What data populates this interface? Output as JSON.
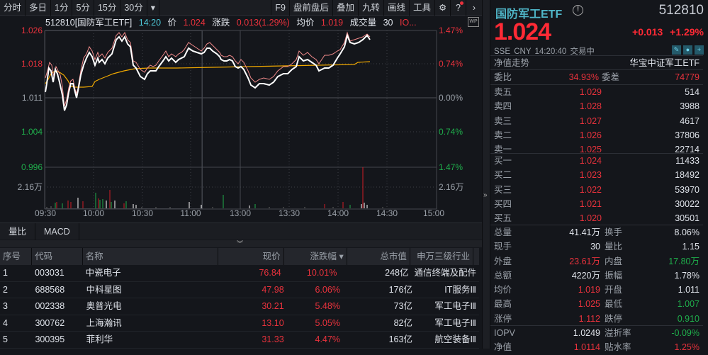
{
  "toolbar": {
    "left": [
      "分时",
      "多日",
      "1分",
      "5分",
      "15分",
      "30分"
    ],
    "more_icon": "▾",
    "right": [
      "F9",
      "盘前盘后",
      "叠加",
      "九转",
      "画线",
      "工具"
    ],
    "settings_icon": "⚙",
    "help_icon": "?",
    "next_icon": "›"
  },
  "infobar": {
    "title": "512810[国防军工ETF]",
    "time": "14:20",
    "price_label": "价",
    "price": "1.024",
    "change_label": "涨跌",
    "change": "0.013(1.29%)",
    "avg_label": "均价",
    "avg": "1.019",
    "volume_label": "成交量",
    "volume": "30",
    "iopv": "IO...",
    "wp_icon": "WP"
  },
  "chart_data": {
    "type": "line",
    "title": "512810[国防军工ETF] 分时",
    "y_left_ticks": [
      "1.026",
      "1.018",
      "1.011",
      "1.004",
      "0.996"
    ],
    "y_right_ticks": [
      "1.47%",
      "0.74%",
      "0.00%",
      "0.74%",
      "1.47%"
    ],
    "volume_tick": "2.16万",
    "x_ticks": [
      "09:30",
      "10:00",
      "10:30",
      "11:00",
      "13:00",
      "13:30",
      "14:00",
      "14:30",
      "15:00"
    ],
    "ylim": [
      0.996,
      1.026
    ],
    "prev_close": 1.011,
    "series": [
      {
        "name": "price",
        "color": "#ffffff",
        "values": [
          1.011,
          1.014,
          1.018,
          1.016,
          1.013,
          1.017,
          1.015,
          1.008,
          1.01,
          1.013,
          1.012,
          1.011,
          1.015,
          1.017,
          1.019,
          1.018,
          1.02,
          1.019,
          1.017,
          1.018,
          1.016,
          1.021,
          1.022,
          1.023,
          1.022,
          1.02,
          1.018,
          1.017,
          1.016,
          1.015,
          1.016,
          1.017,
          1.016,
          1.017,
          1.018,
          1.019,
          1.02,
          1.02,
          1.019,
          1.017,
          1.016,
          1.016,
          1.018,
          1.019,
          1.021,
          1.021,
          1.02,
          1.018,
          1.019,
          1.018,
          1.016,
          1.017,
          1.018,
          1.019,
          1.019,
          1.02,
          1.022,
          1.024,
          1.023,
          1.023,
          1.024,
          1.024
        ]
      },
      {
        "name": "avg_price",
        "color": "#f0a800",
        "values": [
          1.011,
          1.012,
          1.014,
          1.015,
          1.015,
          1.014,
          1.013,
          1.013,
          1.014,
          1.015,
          1.016,
          1.016,
          1.017,
          1.017,
          1.017,
          1.017,
          1.017,
          1.017,
          1.017,
          1.0175,
          1.0175,
          1.0175,
          1.0175,
          1.0175,
          1.0178,
          1.0178,
          1.018,
          1.018,
          1.019,
          1.019
        ]
      }
    ]
  },
  "subtabs": [
    "量比",
    "MACD"
  ],
  "table": {
    "headers": [
      "序号",
      "代码",
      "名称",
      "现价",
      "涨跌幅",
      "总市值",
      "申万三级行业"
    ],
    "sort_icon": "▾",
    "rows": [
      {
        "no": "1",
        "code": "003031",
        "name": "中瓷电子",
        "price": "76.84",
        "pct": "10.01%",
        "cap": "248亿",
        "ind": "通信终端及配件"
      },
      {
        "no": "2",
        "code": "688568",
        "name": "中科星图",
        "price": "47.98",
        "pct": "6.06%",
        "cap": "176亿",
        "ind": "IT服务Ⅲ"
      },
      {
        "no": "3",
        "code": "002338",
        "name": "奥普光电",
        "price": "30.21",
        "pct": "5.48%",
        "cap": "73亿",
        "ind": "军工电子Ⅲ"
      },
      {
        "no": "4",
        "code": "300762",
        "name": "上海瀚讯",
        "price": "13.10",
        "pct": "5.05%",
        "cap": "82亿",
        "ind": "军工电子Ⅲ"
      },
      {
        "no": "5",
        "code": "300395",
        "name": "菲利华",
        "price": "31.33",
        "pct": "4.47%",
        "cap": "163亿",
        "ind": "航空装备Ⅲ"
      }
    ]
  },
  "quote": {
    "name": "国防军工ETF",
    "info_icon": "!",
    "code": "512810",
    "price": "1.024",
    "change": "+0.013",
    "pct": "+1.29%",
    "meta": "SSE  CNY  14:20:40  交易中",
    "icons": [
      "✎",
      "🔔",
      "+"
    ],
    "nav_label": "净值走势",
    "fund_name": "华宝中证军工ETF",
    "wb_label": "委比",
    "wb": "34.93%",
    "wc_label": "委差",
    "wc": "74779",
    "asks": [
      {
        "label": "卖五",
        "price": "1.029",
        "vol": "514"
      },
      {
        "label": "卖四",
        "price": "1.028",
        "vol": "3988"
      },
      {
        "label": "卖三",
        "price": "1.027",
        "vol": "4617"
      },
      {
        "label": "卖二",
        "price": "1.026",
        "vol": "37806"
      },
      {
        "label": "卖一",
        "price": "1.025",
        "vol": "22714"
      }
    ],
    "bids": [
      {
        "label": "买一",
        "price": "1.024",
        "vol": "11433"
      },
      {
        "label": "买二",
        "price": "1.023",
        "vol": "18492"
      },
      {
        "label": "买三",
        "price": "1.022",
        "vol": "53970"
      },
      {
        "label": "买四",
        "price": "1.021",
        "vol": "30022"
      },
      {
        "label": "买五",
        "price": "1.020",
        "vol": "30501"
      }
    ],
    "stats": [
      {
        "l1": "总量",
        "v1": "41.41万",
        "c1": "white",
        "l2": "换手",
        "v2": "8.06%",
        "c2": "white"
      },
      {
        "l1": "现手",
        "v1": "30",
        "c1": "white",
        "l2": "量比",
        "v2": "1.15",
        "c2": "white"
      },
      {
        "l1": "外盘",
        "v1": "23.61万",
        "c1": "red",
        "l2": "内盘",
        "v2": "17.80万",
        "c2": "green"
      },
      {
        "l1": "总额",
        "v1": "4220万",
        "c1": "white",
        "l2": "振幅",
        "v2": "1.78%",
        "c2": "white"
      },
      {
        "l1": "均价",
        "v1": "1.019",
        "c1": "red",
        "l2": "开盘",
        "v2": "1.011",
        "c2": "white"
      },
      {
        "l1": "最高",
        "v1": "1.025",
        "c1": "red",
        "l2": "最低",
        "v2": "1.007",
        "c2": "green"
      },
      {
        "l1": "涨停",
        "v1": "1.112",
        "c1": "red",
        "l2": "跌停",
        "v2": "0.910",
        "c2": "green"
      }
    ],
    "etf": [
      {
        "l1": "IOPV",
        "v1": "1.0249",
        "c1": "white",
        "l2": "溢折率",
        "v2": "-0.09%",
        "c2": "green"
      },
      {
        "l1": "净值",
        "v1": "1.0114",
        "c1": "red",
        "l2": "贴水率",
        "v2": "1.25%",
        "c2": "red"
      }
    ]
  }
}
